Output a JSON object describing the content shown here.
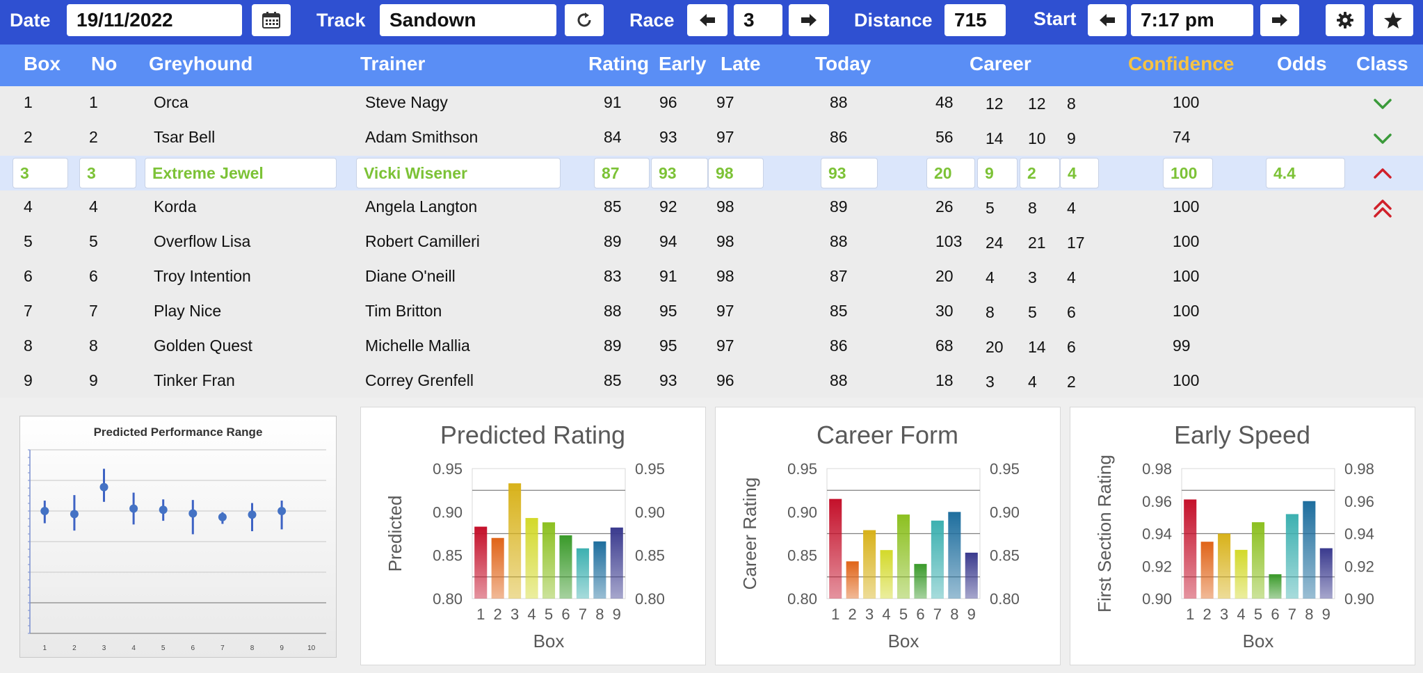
{
  "toolbar": {
    "date_label": "Date",
    "date_value": "19/11/2022",
    "track_label": "Track",
    "track_value": "Sandown",
    "race_label": "Race",
    "race_value": "3",
    "distance_label": "Distance",
    "distance_value": "715",
    "start_label": "Start",
    "start_value": "7:17 pm",
    "icons": [
      "calendar-icon",
      "refresh-icon",
      "arrow-left-icon",
      "arrow-right-icon",
      "gear-icon",
      "star-icon"
    ]
  },
  "table": {
    "headers": {
      "box": "Box",
      "no": "No",
      "greyhound": "Greyhound",
      "trainer": "Trainer",
      "rating": "Rating",
      "early": "Early",
      "late": "Late",
      "today": "Today",
      "career": "Career",
      "confidence": "Confidence",
      "odds": "Odds",
      "class": "Class"
    },
    "selected_index": 2,
    "rows": [
      {
        "box": "1",
        "no": "1",
        "name": "Orca",
        "trainer": "Steve Nagy",
        "rating": "91",
        "early": "96",
        "late": "97",
        "today": "88",
        "c1": "48",
        "c2": "12",
        "c3": "12",
        "c4": "8",
        "confidence": "100",
        "odds": "",
        "class_icon": "check"
      },
      {
        "box": "2",
        "no": "2",
        "name": "Tsar Bell",
        "trainer": "Adam Smithson",
        "rating": "84",
        "early": "93",
        "late": "97",
        "today": "86",
        "c1": "56",
        "c2": "14",
        "c3": "10",
        "c4": "9",
        "confidence": "74",
        "odds": "",
        "class_icon": "check"
      },
      {
        "box": "3",
        "no": "3",
        "name": "Extreme Jewel",
        "trainer": "Vicki Wisener",
        "rating": "87",
        "early": "93",
        "late": "98",
        "today": "93",
        "c1": "20",
        "c2": "9",
        "c3": "2",
        "c4": "4",
        "confidence": "100",
        "odds": "4.4",
        "class_icon": "up"
      },
      {
        "box": "4",
        "no": "4",
        "name": "Korda",
        "trainer": "Angela Langton",
        "rating": "85",
        "early": "92",
        "late": "98",
        "today": "89",
        "c1": "26",
        "c2": "5",
        "c3": "8",
        "c4": "4",
        "confidence": "100",
        "odds": "",
        "class_icon": "double-up"
      },
      {
        "box": "5",
        "no": "5",
        "name": "Overflow Lisa",
        "trainer": "Robert Camilleri",
        "rating": "89",
        "early": "94",
        "late": "98",
        "today": "88",
        "c1": "103",
        "c2": "24",
        "c3": "21",
        "c4": "17",
        "confidence": "100",
        "odds": "",
        "class_icon": ""
      },
      {
        "box": "6",
        "no": "6",
        "name": "Troy Intention",
        "trainer": "Diane O'neill",
        "rating": "83",
        "early": "91",
        "late": "98",
        "today": "87",
        "c1": "20",
        "c2": "4",
        "c3": "3",
        "c4": "4",
        "confidence": "100",
        "odds": "",
        "class_icon": ""
      },
      {
        "box": "7",
        "no": "7",
        "name": "Play Nice",
        "trainer": "Tim Britton",
        "rating": "88",
        "early": "95",
        "late": "97",
        "today": "85",
        "c1": "30",
        "c2": "8",
        "c3": "5",
        "c4": "6",
        "confidence": "100",
        "odds": "",
        "class_icon": ""
      },
      {
        "box": "8",
        "no": "8",
        "name": "Golden Quest",
        "trainer": "Michelle Mallia",
        "rating": "89",
        "early": "95",
        "late": "97",
        "today": "86",
        "c1": "68",
        "c2": "20",
        "c3": "14",
        "c4": "6",
        "confidence": "99",
        "odds": "",
        "class_icon": ""
      },
      {
        "box": "9",
        "no": "9",
        "name": "Tinker Fran",
        "trainer": "Correy Grenfell",
        "rating": "85",
        "early": "93",
        "late": "96",
        "today": "88",
        "c1": "18",
        "c2": "3",
        "c3": "4",
        "c4": "2",
        "confidence": "100",
        "odds": "",
        "class_icon": ""
      }
    ]
  },
  "colors": {
    "toolbar_bg": "#2f50d1",
    "header_bg": "#5a8ef5",
    "confidence_header": "#f6c343",
    "selected_row_bg": "#dbe6fb",
    "selected_text": "#7cc236",
    "check": "#3a9a3a",
    "up": "#d0202a",
    "bar_palette": [
      "#c4102a",
      "#e06418",
      "#d8b21a",
      "#d3d92a",
      "#8cc020",
      "#3a9a2a",
      "#3cb0b0",
      "#1e6e9e",
      "#3a3a8e"
    ]
  },
  "chart_data": [
    {
      "type": "scatter",
      "title": "Predicted Performance Range",
      "x": [
        1,
        2,
        3,
        4,
        5,
        6,
        7,
        8,
        9
      ],
      "xticks": [
        "1",
        "2",
        "3",
        "4",
        "5",
        "6",
        "7",
        "8",
        "9",
        "10"
      ],
      "xlim": [
        0.5,
        10.5
      ],
      "points": [
        {
          "x": 1,
          "y": 0.9,
          "low": 0.88,
          "high": 0.917
        },
        {
          "x": 2,
          "y": 0.895,
          "low": 0.868,
          "high": 0.926
        },
        {
          "x": 3,
          "y": 0.939,
          "low": 0.915,
          "high": 0.969
        },
        {
          "x": 4,
          "y": 0.904,
          "low": 0.878,
          "high": 0.93
        },
        {
          "x": 5,
          "y": 0.902,
          "low": 0.884,
          "high": 0.919
        },
        {
          "x": 6,
          "y": 0.896,
          "low": 0.862,
          "high": 0.918
        },
        {
          "x": 7,
          "y": 0.89,
          "low": 0.879,
          "high": 0.898
        },
        {
          "x": 8,
          "y": 0.894,
          "low": 0.867,
          "high": 0.913
        },
        {
          "x": 9,
          "y": 0.9,
          "low": 0.87,
          "high": 0.917
        }
      ],
      "ylim": [
        0.7,
        1.0
      ],
      "grid": true
    },
    {
      "type": "bar",
      "title": "Predicted Rating",
      "xlabel": "Box",
      "ylabel": "Predicted",
      "categories": [
        "1",
        "2",
        "3",
        "4",
        "5",
        "6",
        "7",
        "8",
        "9"
      ],
      "values": [
        0.883,
        0.87,
        0.933,
        0.893,
        0.888,
        0.873,
        0.858,
        0.866,
        0.882
      ],
      "ylim": [
        0.8,
        0.95
      ],
      "yticks": [
        "0.80",
        "0.85",
        "0.90",
        "0.95"
      ],
      "secondary_axis": true
    },
    {
      "type": "bar",
      "title": "Career Form",
      "xlabel": "Box",
      "ylabel": "Career Rating",
      "categories": [
        "1",
        "2",
        "3",
        "4",
        "5",
        "6",
        "7",
        "8",
        "9"
      ],
      "values": [
        0.915,
        0.843,
        0.879,
        0.856,
        0.897,
        0.84,
        0.89,
        0.9,
        0.853
      ],
      "ylim": [
        0.8,
        0.95
      ],
      "yticks": [
        "0.80",
        "0.85",
        "0.90",
        "0.95"
      ],
      "secondary_axis": true
    },
    {
      "type": "bar",
      "title": "Early Speed",
      "xlabel": "Box",
      "ylabel": "First Section Rating",
      "categories": [
        "1",
        "2",
        "3",
        "4",
        "5",
        "6",
        "7",
        "8",
        "9"
      ],
      "values": [
        0.961,
        0.935,
        0.94,
        0.93,
        0.947,
        0.915,
        0.952,
        0.96,
        0.931
      ],
      "ylim": [
        0.9,
        0.98
      ],
      "yticks": [
        "0.90",
        "0.92",
        "0.94",
        "0.96",
        "0.98"
      ],
      "secondary_axis": true
    }
  ]
}
